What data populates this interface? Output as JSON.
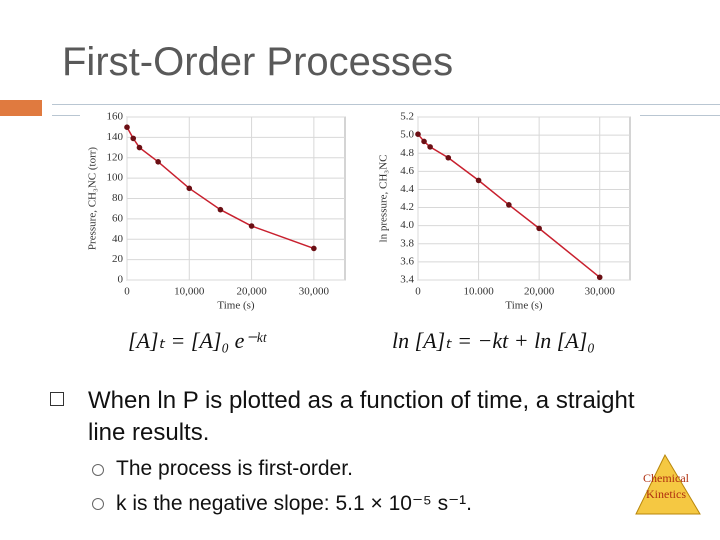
{
  "title": "First-Order Processes",
  "chart_data": [
    {
      "type": "line",
      "x_label": "Time (s)",
      "y_label": "Pressure, CH₃NC (torr)",
      "x": [
        0,
        1000,
        2000,
        5000,
        10000,
        15000,
        20000,
        30000
      ],
      "series": [
        {
          "color": "#c8202e",
          "values": [
            150,
            139,
            130,
            116,
            90,
            69,
            53,
            31
          ]
        }
      ],
      "xlim": [
        0,
        35000
      ],
      "xticks": [
        0,
        {
          "value": 10000,
          "label": "10,000"
        },
        {
          "value": 20000,
          "label": "20,000"
        },
        {
          "value": 30000,
          "label": "30,000"
        }
      ],
      "ylim": [
        0,
        160
      ],
      "yticks": [
        0,
        20,
        40,
        60,
        80,
        100,
        120,
        140,
        160
      ],
      "grid": true,
      "equation": "[A]ₜ = [A]₀ e⁻ᵏᵗ"
    },
    {
      "type": "line",
      "x_label": "Time (s)",
      "y_label": "ln pressure, CH₃NC",
      "x": [
        0,
        1000,
        2000,
        5000,
        10000,
        15000,
        20000,
        30000
      ],
      "series": [
        {
          "color": "#c8202e",
          "values": [
            5.01,
            4.93,
            4.87,
            4.75,
            4.5,
            4.23,
            3.97,
            3.43
          ]
        }
      ],
      "xlim": [
        0,
        35000
      ],
      "xticks": [
        0,
        {
          "value": 10000,
          "label": "10.000"
        },
        {
          "value": 20000,
          "label": "20,000"
        },
        {
          "value": 30000,
          "label": "30,000"
        }
      ],
      "ylim": [
        3.4,
        5.2
      ],
      "yticks": [
        {
          "value": 3.4,
          "label": "3.4"
        },
        {
          "value": 3.6,
          "label": "3.6"
        },
        {
          "value": 3.8,
          "label": "3.8"
        },
        {
          "value": 4.0,
          "label": "4.0"
        },
        {
          "value": 4.2,
          "label": "4.2"
        },
        {
          "value": 4.4,
          "label": "4.4"
        },
        {
          "value": 4.6,
          "label": "4.6"
        },
        {
          "value": 4.8,
          "label": "4.8"
        },
        {
          "value": 5.0,
          "label": "5.0"
        },
        {
          "value": 5.2,
          "label": "5.2"
        }
      ],
      "grid": true,
      "equation": "ln [A]ₜ = −kt + ln [A]₀"
    }
  ],
  "bullets": [
    {
      "text": "When ln P is plotted as a function of time, a straight line results.",
      "sub": [
        "The process is first-order.",
        "k is the negative slope:  5.1 × 10⁻⁵ s⁻¹."
      ]
    }
  ],
  "logo": {
    "line1": "Chemical",
    "line2": "Kinetics"
  }
}
